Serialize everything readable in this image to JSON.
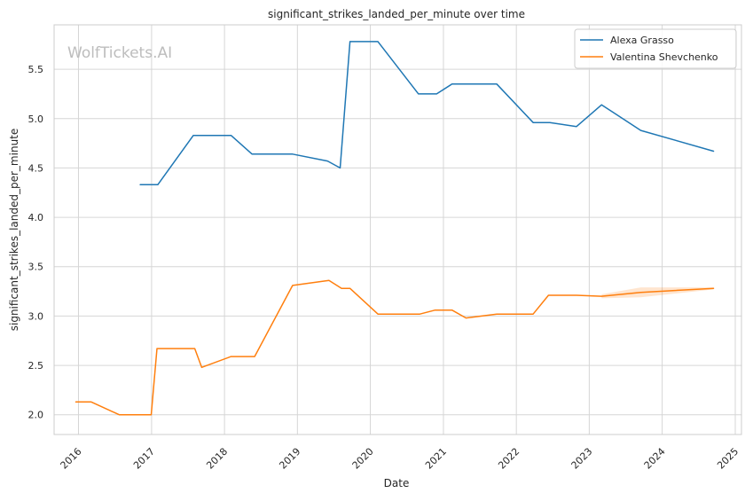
{
  "chart_data": {
    "type": "line",
    "title": "significant_strikes_landed_per_minute over time",
    "xlabel": "Date",
    "ylabel": "significant_strikes_landed_per_minute",
    "watermark": "WolfTickets.AI",
    "xlim": [
      "2015-09-01",
      "2025-02-01"
    ],
    "ylim": [
      1.8,
      5.95
    ],
    "x_ticks": [
      "2016",
      "2017",
      "2018",
      "2019",
      "2020",
      "2021",
      "2022",
      "2023",
      "2024",
      "2025"
    ],
    "y_ticks": [
      "2.0",
      "2.5",
      "3.0",
      "3.5",
      "4.0",
      "4.5",
      "5.0",
      "5.5"
    ],
    "grid": true,
    "legend_position": "top-right",
    "colors": {
      "Alexa Grasso": "#1f77b4",
      "Valentina Shevchenko": "#ff7f0e"
    },
    "series": [
      {
        "name": "Alexa Grasso",
        "color": "#1f77b4",
        "points": [
          [
            "2016-11-05",
            4.33
          ],
          [
            "2017-02-01",
            4.33
          ],
          [
            "2017-07-29",
            4.83
          ],
          [
            "2018-02-03",
            4.83
          ],
          [
            "2018-05-19",
            4.64
          ],
          [
            "2018-12-08",
            4.64
          ],
          [
            "2019-06-01",
            4.57
          ],
          [
            "2019-08-03",
            4.5
          ],
          [
            "2019-09-21",
            5.78
          ],
          [
            "2020-02-08",
            5.78
          ],
          [
            "2020-08-29",
            5.25
          ],
          [
            "2020-11-28",
            5.25
          ],
          [
            "2021-02-13",
            5.35
          ],
          [
            "2021-09-25",
            5.35
          ],
          [
            "2022-03-26",
            4.96
          ],
          [
            "2022-06-18",
            4.96
          ],
          [
            "2022-10-29",
            4.92
          ],
          [
            "2023-03-04",
            5.14
          ],
          [
            "2023-09-16",
            4.88
          ],
          [
            "2024-09-14",
            4.67
          ]
        ]
      },
      {
        "name": "Valentina Shevchenko",
        "color": "#ff7f0e",
        "points": [
          [
            "2015-12-19",
            2.13
          ],
          [
            "2016-03-05",
            2.13
          ],
          [
            "2016-07-23",
            2.0
          ],
          [
            "2016-12-30",
            2.0
          ],
          [
            "2017-01-28",
            2.67
          ],
          [
            "2017-08-05",
            2.67
          ],
          [
            "2017-09-09",
            2.48
          ],
          [
            "2018-02-03",
            2.59
          ],
          [
            "2018-06-01",
            2.59
          ],
          [
            "2018-12-08",
            3.31
          ],
          [
            "2019-06-08",
            3.36
          ],
          [
            "2019-08-10",
            3.28
          ],
          [
            "2019-09-21",
            3.28
          ],
          [
            "2020-02-08",
            3.02
          ],
          [
            "2020-09-05",
            3.02
          ],
          [
            "2020-11-21",
            3.06
          ],
          [
            "2021-02-13",
            3.06
          ],
          [
            "2021-04-24",
            2.98
          ],
          [
            "2021-09-25",
            3.02
          ],
          [
            "2022-03-26",
            3.02
          ],
          [
            "2022-06-11",
            3.21
          ],
          [
            "2022-10-29",
            3.21
          ],
          [
            "2023-03-04",
            3.2
          ],
          [
            "2023-09-16",
            3.24
          ],
          [
            "2024-09-14",
            3.28
          ]
        ],
        "band": [
          [
            "2023-03-04",
            3.18,
            3.22
          ],
          [
            "2023-09-16",
            3.19,
            3.29
          ],
          [
            "2024-09-14",
            3.27,
            3.29
          ]
        ]
      }
    ]
  }
}
